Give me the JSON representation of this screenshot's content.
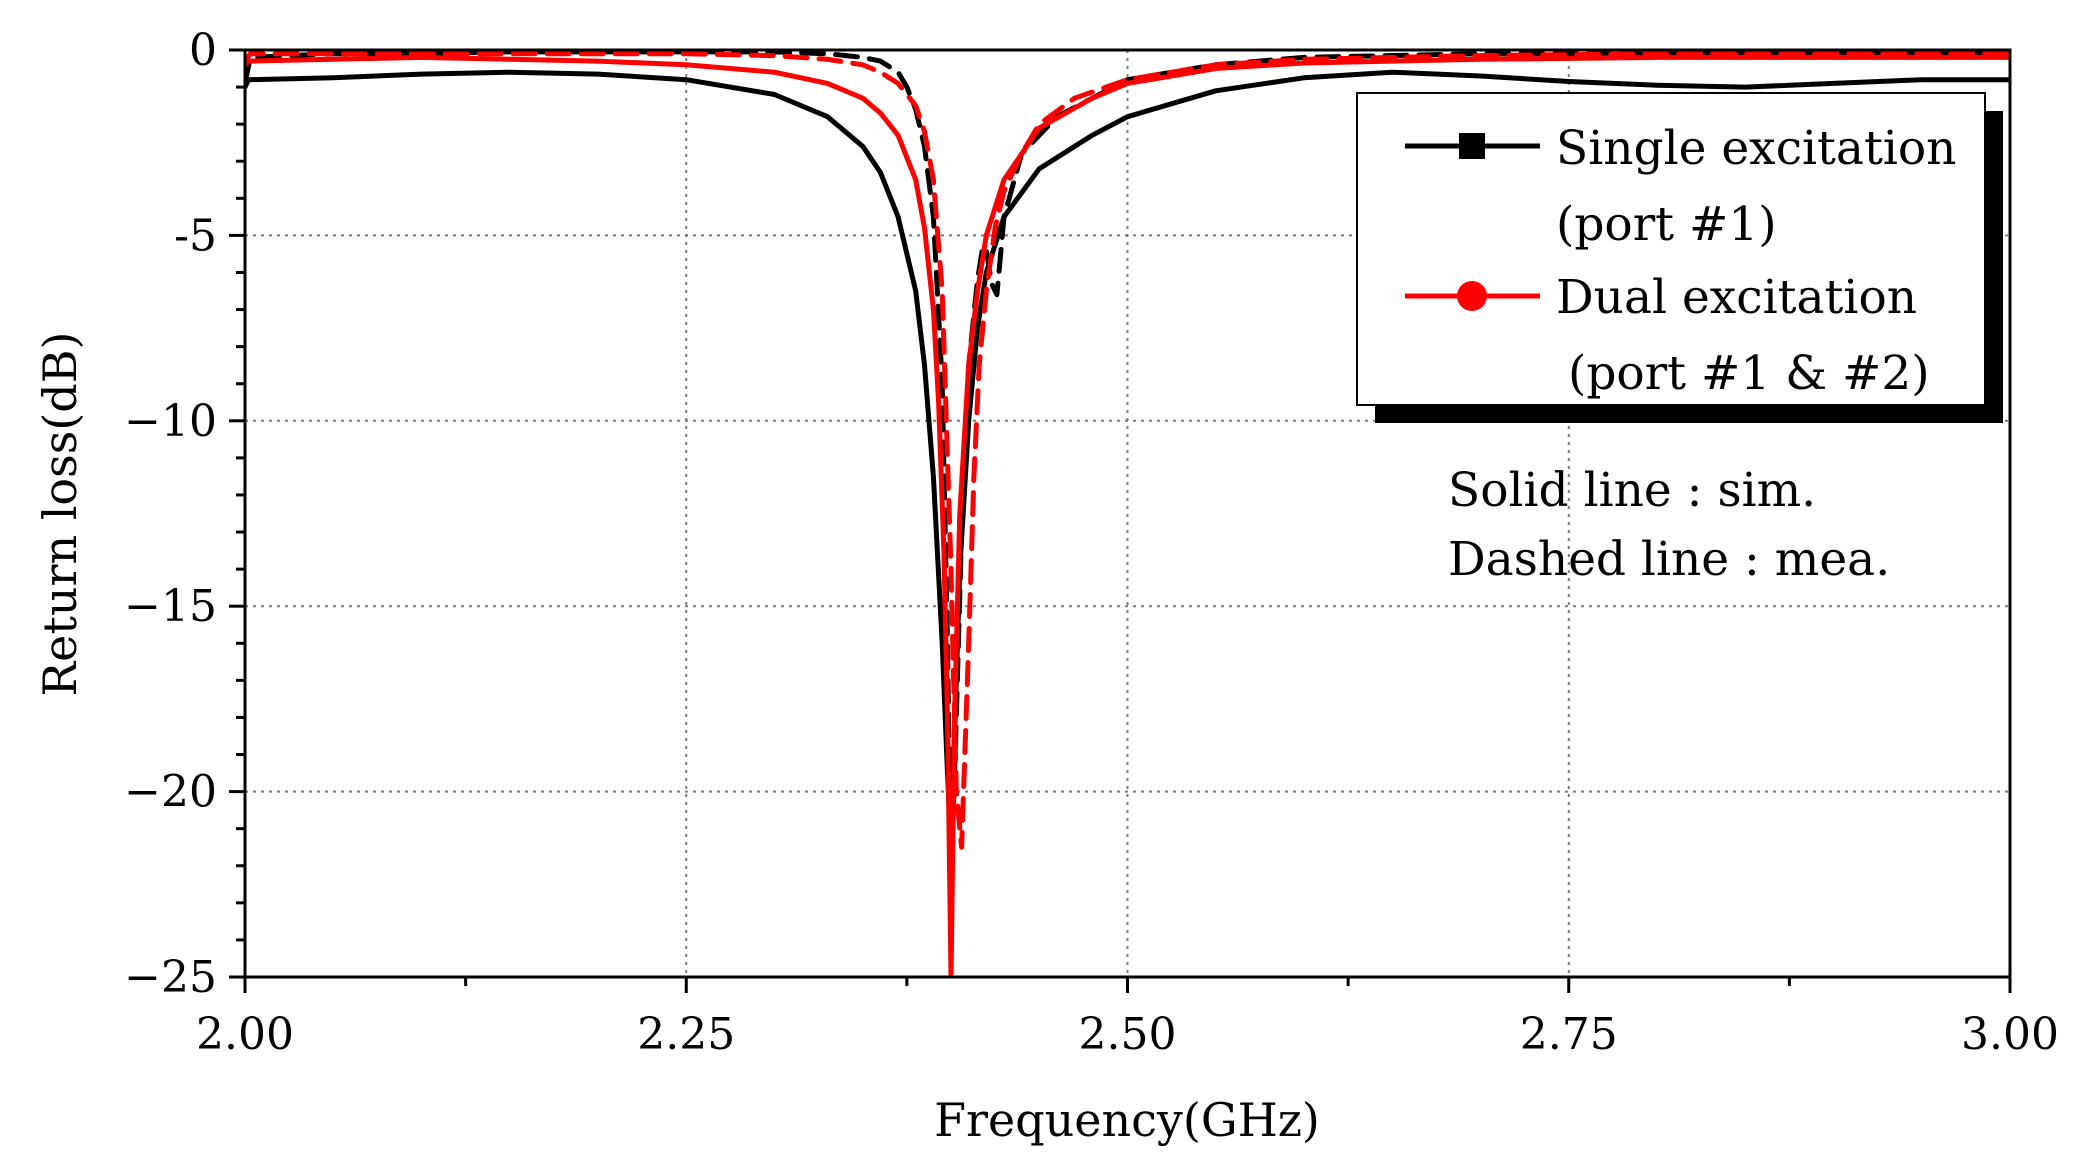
{
  "chart_data": {
    "type": "line",
    "title": "",
    "xlabel": "Frequency(GHz)",
    "ylabel": "Return loss(dB)",
    "xlim": [
      2.0,
      3.0
    ],
    "ylim": [
      -25,
      0
    ],
    "xticks": [
      2.0,
      2.25,
      2.5,
      2.75,
      3.0
    ],
    "xtick_labels": [
      "2.00",
      "2.25",
      "2.50",
      "2.75",
      "3.00"
    ],
    "yticks": [
      0,
      -5,
      -10,
      -15,
      -20,
      -25
    ],
    "ytick_labels": [
      "0",
      "-5",
      "−10",
      "−15",
      "−20",
      "−25"
    ],
    "grid": true,
    "legend": {
      "position": "top-right",
      "entries": [
        {
          "label_line1": "Single excitation",
          "label_line2": "(port #1)",
          "color": "#000000",
          "marker": "square"
        },
        {
          "label_line1": "Dual excitation",
          "label_line2": "(port #1 & #2)",
          "color": "#ff0000",
          "marker": "circle"
        }
      ]
    },
    "annotations": [
      "Solid line : sim.",
      "Dashed line : mea."
    ],
    "series": [
      {
        "name": "Single excitation (port #1) sim.",
        "color": "#000000",
        "dash": "solid",
        "x": [
          2.0,
          2.002,
          2.05,
          2.1,
          2.15,
          2.2,
          2.25,
          2.3,
          2.33,
          2.35,
          2.36,
          2.37,
          2.38,
          2.385,
          2.39,
          2.395,
          2.398,
          2.4,
          2.402,
          2.405,
          2.41,
          2.415,
          2.42,
          2.43,
          2.45,
          2.48,
          2.5,
          2.55,
          2.6,
          2.65,
          2.7,
          2.75,
          2.8,
          2.85,
          2.9,
          2.95,
          3.0
        ],
        "y": [
          -1.0,
          -0.8,
          -0.75,
          -0.65,
          -0.6,
          -0.65,
          -0.8,
          -1.2,
          -1.8,
          -2.6,
          -3.3,
          -4.5,
          -6.5,
          -8.5,
          -11.5,
          -16.0,
          -19.5,
          -21.5,
          -18.5,
          -14.0,
          -10.0,
          -7.5,
          -6.0,
          -4.5,
          -3.2,
          -2.3,
          -1.8,
          -1.1,
          -0.75,
          -0.6,
          -0.7,
          -0.85,
          -0.95,
          -1.0,
          -0.9,
          -0.8,
          -0.8
        ]
      },
      {
        "name": "Single excitation (port #1) mea.",
        "color": "#000000",
        "dash": "dashed",
        "x": [
          2.0,
          2.003,
          2.05,
          2.1,
          2.15,
          2.2,
          2.25,
          2.3,
          2.33,
          2.35,
          2.36,
          2.37,
          2.375,
          2.38,
          2.385,
          2.39,
          2.395,
          2.398,
          2.4,
          2.403,
          2.406,
          2.41,
          2.415,
          2.418,
          2.42,
          2.423,
          2.426,
          2.43,
          2.44,
          2.46,
          2.5,
          2.55,
          2.6,
          2.7,
          2.8,
          2.9,
          3.0
        ],
        "y": [
          -0.9,
          -0.2,
          -0.1,
          -0.1,
          -0.05,
          -0.05,
          -0.05,
          -0.05,
          -0.1,
          -0.2,
          -0.3,
          -0.6,
          -1.0,
          -1.6,
          -2.6,
          -4.5,
          -9.0,
          -16.0,
          -22.5,
          -18.0,
          -13.0,
          -8.5,
          -6.2,
          -5.3,
          -5.4,
          -6.3,
          -6.6,
          -4.5,
          -2.8,
          -1.8,
          -0.8,
          -0.4,
          -0.2,
          -0.1,
          -0.1,
          -0.1,
          -0.1
        ]
      },
      {
        "name": "Dual excitation (port #1 & #2) sim.",
        "color": "#ff0000",
        "dash": "solid",
        "x": [
          2.0,
          2.002,
          2.05,
          2.1,
          2.15,
          2.2,
          2.25,
          2.3,
          2.33,
          2.35,
          2.36,
          2.37,
          2.38,
          2.385,
          2.39,
          2.393,
          2.396,
          2.398,
          2.4,
          2.402,
          2.405,
          2.41,
          2.415,
          2.42,
          2.43,
          2.45,
          2.48,
          2.5,
          2.55,
          2.6,
          2.7,
          2.8,
          2.9,
          3.0
        ],
        "y": [
          -0.4,
          -0.3,
          -0.25,
          -0.2,
          -0.25,
          -0.3,
          -0.4,
          -0.6,
          -0.9,
          -1.3,
          -1.7,
          -2.3,
          -3.5,
          -4.8,
          -7.0,
          -9.5,
          -13.5,
          -18.0,
          -25.0,
          -18.0,
          -12.5,
          -8.5,
          -6.5,
          -5.0,
          -3.5,
          -2.1,
          -1.3,
          -0.9,
          -0.5,
          -0.35,
          -0.25,
          -0.2,
          -0.2,
          -0.2
        ]
      },
      {
        "name": "Dual excitation (port #1 & #2) mea.",
        "color": "#ff0000",
        "dash": "dashed",
        "x": [
          2.0,
          2.003,
          2.05,
          2.1,
          2.15,
          2.2,
          2.25,
          2.3,
          2.33,
          2.35,
          2.36,
          2.37,
          2.38,
          2.385,
          2.39,
          2.395,
          2.4,
          2.403,
          2.406,
          2.41,
          2.413,
          2.416,
          2.42,
          2.425,
          2.43,
          2.44,
          2.45,
          2.47,
          2.5,
          2.55,
          2.6,
          2.7,
          2.8,
          2.9,
          3.0
        ],
        "y": [
          -0.3,
          -0.1,
          -0.1,
          -0.1,
          -0.1,
          -0.1,
          -0.1,
          -0.15,
          -0.25,
          -0.4,
          -0.6,
          -0.9,
          -1.5,
          -2.2,
          -3.5,
          -6.5,
          -14.0,
          -20.0,
          -21.5,
          -16.0,
          -11.5,
          -8.5,
          -6.5,
          -4.8,
          -3.8,
          -2.8,
          -2.0,
          -1.3,
          -0.8,
          -0.4,
          -0.25,
          -0.15,
          -0.1,
          -0.1,
          -0.1
        ]
      }
    ]
  }
}
